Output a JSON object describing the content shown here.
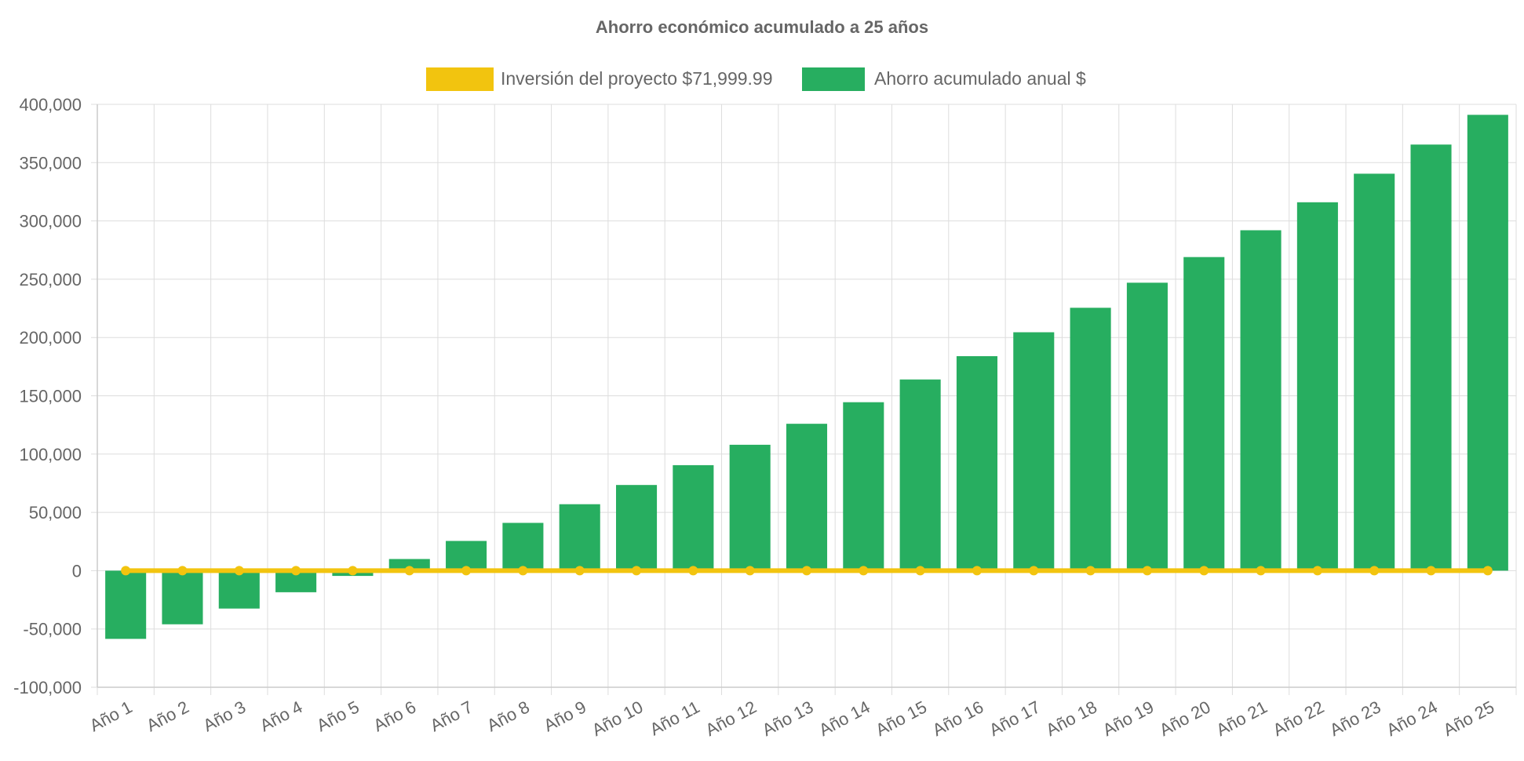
{
  "chart_data": {
    "type": "bar",
    "title": "Ahorro económico acumulado a 25 años",
    "categories": [
      "Año 1",
      "Año 2",
      "Año 3",
      "Año 4",
      "Año 5",
      "Año 6",
      "Año 7",
      "Año 8",
      "Año 9",
      "Año 10",
      "Año 11",
      "Año 12",
      "Año 13",
      "Año 14",
      "Año 15",
      "Año 16",
      "Año 17",
      "Año 18",
      "Año 19",
      "Año 20",
      "Año 21",
      "Año 22",
      "Año 23",
      "Año 24",
      "Año 25"
    ],
    "series": [
      {
        "name": "Inversión del proyecto $71,999.99",
        "type": "line",
        "color": "#f2c40f",
        "values": [
          0,
          0,
          0,
          0,
          0,
          0,
          0,
          0,
          0,
          0,
          0,
          0,
          0,
          0,
          0,
          0,
          0,
          0,
          0,
          0,
          0,
          0,
          0,
          0,
          0
        ]
      },
      {
        "name": "Ahorro acumulado anual $",
        "type": "bar",
        "color": "#27ae60",
        "values": [
          -58500,
          -46000,
          -32500,
          -18500,
          -4500,
          10000,
          25500,
          41000,
          57000,
          73500,
          90500,
          108000,
          126000,
          144500,
          164000,
          184000,
          204500,
          225500,
          247000,
          269000,
          292000,
          316000,
          340500,
          365500,
          391000
        ]
      }
    ],
    "yticks": [
      400000,
      350000,
      300000,
      250000,
      200000,
      150000,
      100000,
      50000,
      0,
      -50000,
      -100000
    ],
    "ytick_labels": [
      "400,000",
      "350,000",
      "300,000",
      "250,000",
      "200,000",
      "150,000",
      "100,000",
      "50,000",
      "0",
      "-50,000",
      "-100,000"
    ],
    "ylim": [
      -100000,
      400000
    ],
    "grid": true,
    "legend_position": "top-center"
  }
}
